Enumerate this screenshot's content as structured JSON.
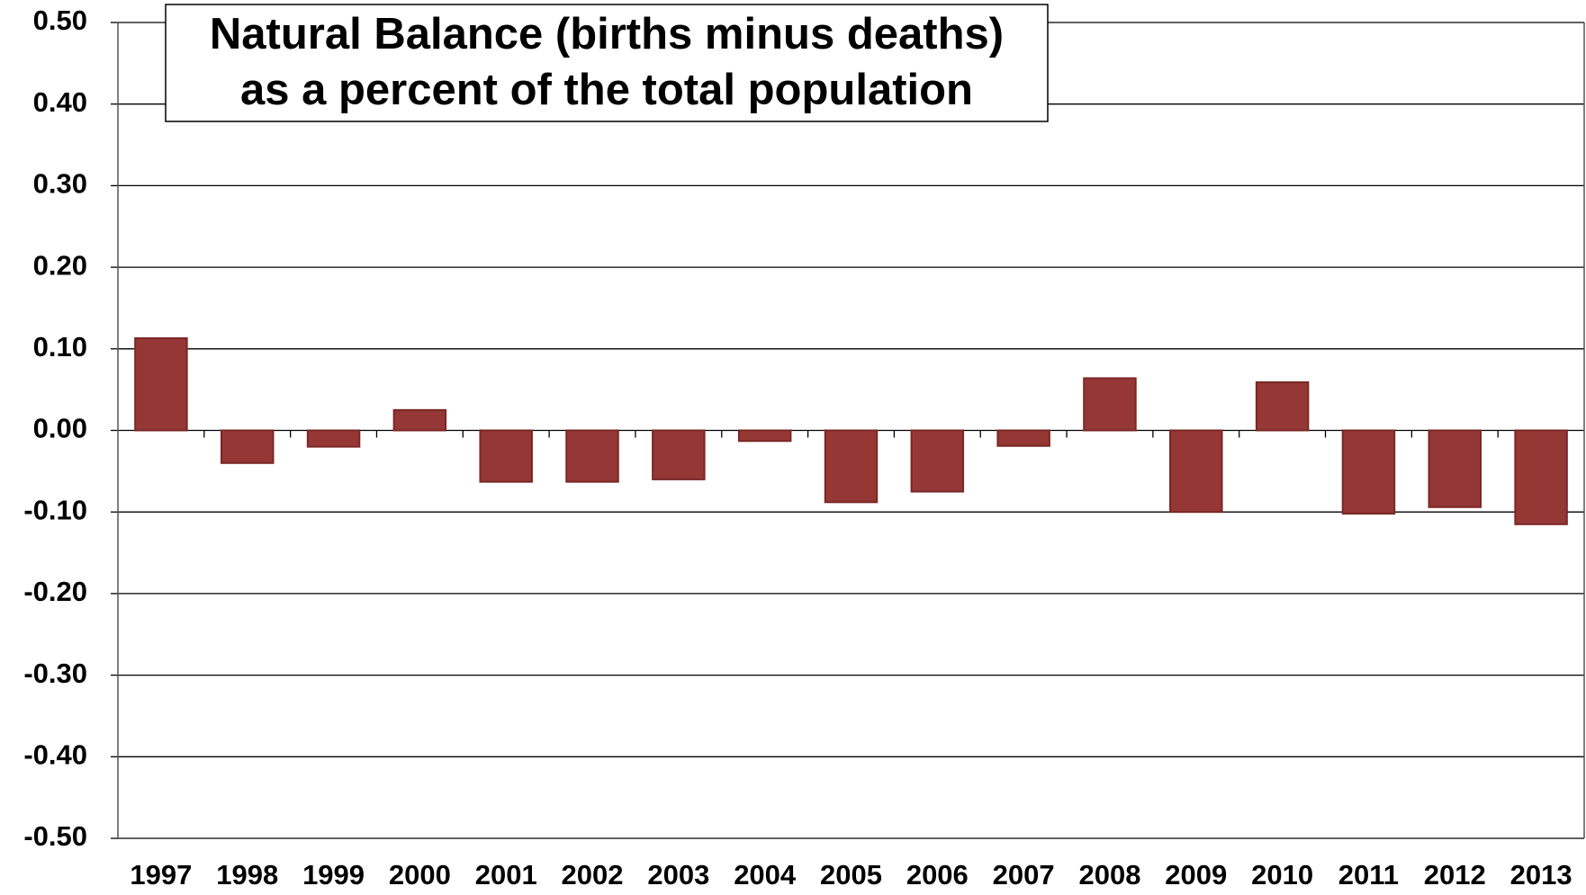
{
  "chart_data": {
    "type": "bar",
    "title": [
      "Natural Balance (births minus deaths)",
      "as a percent of the total population"
    ],
    "categories": [
      "1997",
      "1998",
      "1999",
      "2000",
      "2001",
      "2002",
      "2003",
      "2004",
      "2005",
      "2006",
      "2007",
      "2008",
      "2009",
      "2010",
      "2011",
      "2012",
      "2013"
    ],
    "values": [
      0.113,
      -0.04,
      -0.02,
      0.025,
      -0.063,
      -0.063,
      -0.06,
      -0.013,
      -0.088,
      -0.075,
      -0.019,
      0.064,
      -0.1,
      0.059,
      -0.102,
      -0.094,
      -0.115
    ],
    "color": "#953735",
    "ylim": [
      -0.5,
      0.5
    ],
    "yticks": [
      {
        "value": -0.5,
        "label": "-0.50"
      },
      {
        "value": -0.4,
        "label": "-0.40"
      },
      {
        "value": -0.3,
        "label": "-0.30"
      },
      {
        "value": -0.2,
        "label": "-0.20"
      },
      {
        "value": -0.1,
        "label": "-0.10"
      },
      {
        "value": 0,
        "label": "0.00"
      },
      {
        "value": 0.1,
        "label": "0.10"
      },
      {
        "value": 0.2,
        "label": "0.20"
      },
      {
        "value": 0.3,
        "label": "0.30"
      },
      {
        "value": 0.4,
        "label": "0.40"
      },
      {
        "value": 0.5,
        "label": "0.50"
      }
    ],
    "grid": true
  }
}
